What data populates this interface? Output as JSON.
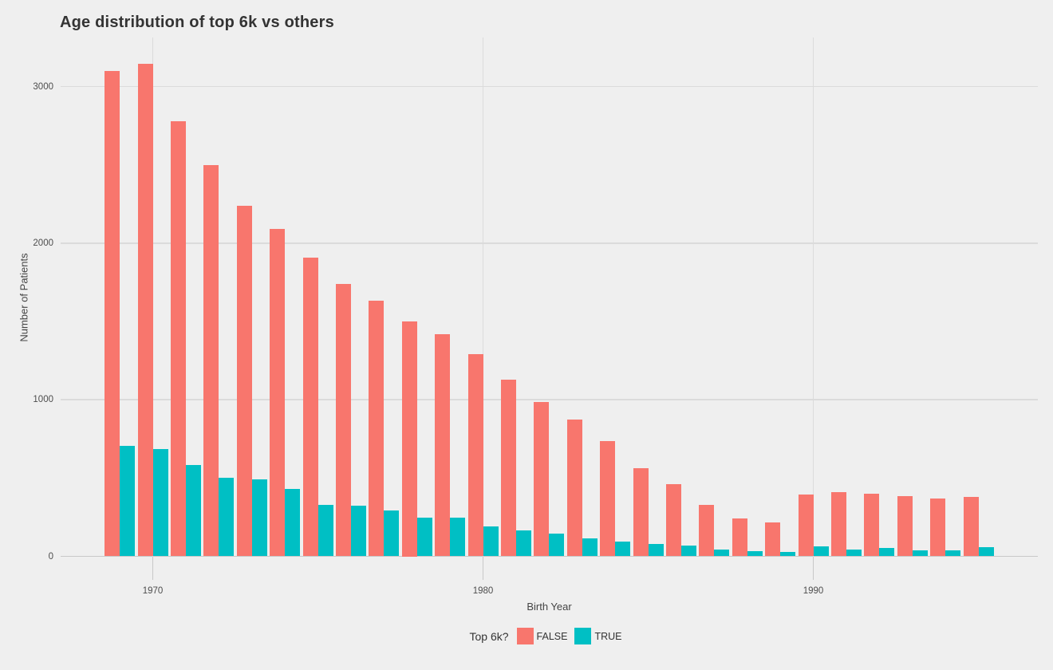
{
  "chart_data": {
    "type": "bar",
    "mode": "grouped",
    "title": "Age distribution of top 6k vs others",
    "xlabel": "Birth Year",
    "ylabel": "Number of Patients",
    "x": [
      1969,
      1970,
      1971,
      1972,
      1973,
      1974,
      1975,
      1976,
      1977,
      1978,
      1979,
      1980,
      1981,
      1982,
      1983,
      1984,
      1985,
      1986,
      1987,
      1988,
      1989,
      1990,
      1991,
      1992,
      1993,
      1994,
      1995
    ],
    "series": [
      {
        "name": "FALSE",
        "color": "#F8766D",
        "values": [
          3100,
          3145,
          2780,
          2500,
          2240,
          2090,
          1910,
          1740,
          1630,
          1500,
          1420,
          1290,
          1130,
          985,
          875,
          735,
          565,
          460,
          330,
          240,
          215,
          395,
          410,
          400,
          385,
          370,
          380
        ]
      },
      {
        "name": "TRUE",
        "color": "#00BFC4",
        "values": [
          705,
          685,
          585,
          500,
          490,
          430,
          330,
          325,
          295,
          245,
          245,
          190,
          165,
          145,
          115,
          95,
          78,
          68,
          45,
          32,
          30,
          62,
          45,
          55,
          38,
          38,
          58
        ]
      }
    ],
    "x_ticks": [
      1970,
      1980,
      1990
    ],
    "y_ticks": [
      0,
      1000,
      2000,
      3000
    ],
    "ylim": [
      0,
      3310
    ],
    "grid": "major-only",
    "legend": {
      "title": "Top 6k?",
      "position": "bottom",
      "entries": [
        {
          "label": "FALSE",
          "color": "#F8766D"
        },
        {
          "label": "TRUE",
          "color": "#00BFC4"
        }
      ]
    }
  },
  "colors": {
    "background": "#EFEFEF",
    "gridline": "#DBDBDB",
    "axis_line": "#C8C8C8",
    "title_text": "#333333",
    "tick_text": "#4D4D4D",
    "axis_title_text": "#444444",
    "false_bar": "#F8766D",
    "true_bar": "#00BFC4"
  }
}
